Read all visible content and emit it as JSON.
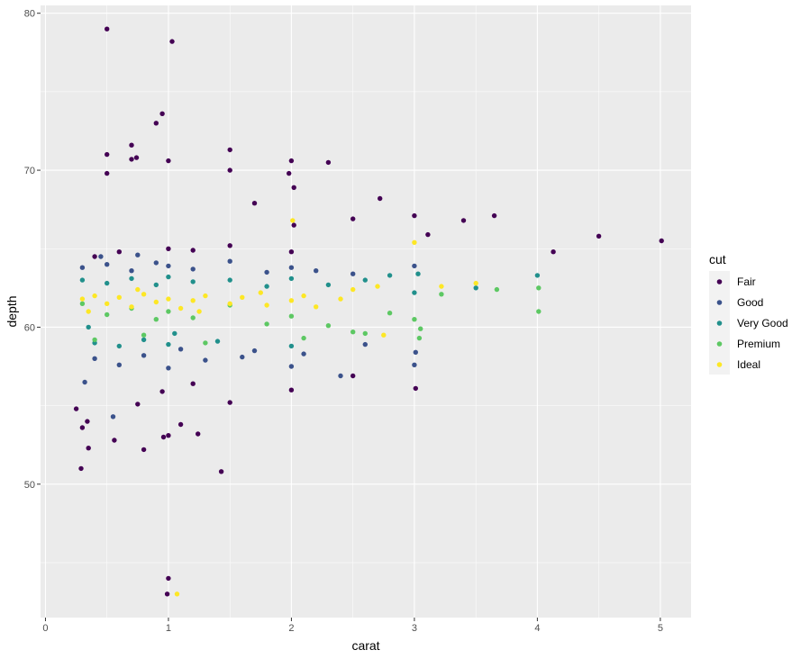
{
  "chart_data": {
    "type": "scatter",
    "title": "",
    "xlabel": "carat",
    "ylabel": "depth",
    "xlim": [
      -0.04,
      5.25
    ],
    "ylim": [
      41.5,
      80.5
    ],
    "x_ticks": [
      0,
      1,
      2,
      3,
      4,
      5
    ],
    "y_ticks": [
      50,
      60,
      70,
      80
    ],
    "grid": true,
    "background": "#ebebeb",
    "legend": {
      "title": "cut",
      "placement": "right",
      "entries": [
        {
          "label": "Fair",
          "color": "#440154"
        },
        {
          "label": "Good",
          "color": "#3b528b"
        },
        {
          "label": "Very Good",
          "color": "#21908c"
        },
        {
          "label": "Premium",
          "color": "#5dc863"
        },
        {
          "label": "Ideal",
          "color": "#fde725"
        }
      ]
    },
    "series": [
      {
        "name": "Fair",
        "color": "#440154",
        "points": [
          [
            0.5,
            79
          ],
          [
            1.03,
            78.2
          ],
          [
            0.29,
            51.0
          ],
          [
            0.35,
            52.3
          ],
          [
            1.43,
            50.8
          ],
          [
            1.0,
            44.0
          ],
          [
            0.99,
            43.0
          ],
          [
            0.95,
            73.6
          ],
          [
            0.9,
            73.0
          ],
          [
            0.5,
            71.0
          ],
          [
            0.7,
            71.6
          ],
          [
            1.5,
            71.3
          ],
          [
            1.0,
            70.6
          ],
          [
            2.0,
            70.6
          ],
          [
            2.3,
            70.5
          ],
          [
            0.7,
            70.7
          ],
          [
            0.74,
            70.8
          ],
          [
            1.5,
            70.0
          ],
          [
            0.5,
            69.8
          ],
          [
            1.98,
            69.8
          ],
          [
            2.02,
            68.9
          ],
          [
            3.0,
            67.1
          ],
          [
            3.4,
            66.8
          ],
          [
            3.65,
            67.1
          ],
          [
            4.5,
            65.8
          ],
          [
            5.01,
            65.5
          ],
          [
            4.13,
            64.8
          ],
          [
            3.11,
            65.9
          ],
          [
            2.02,
            66.5
          ],
          [
            2.5,
            66.9
          ],
          [
            2.72,
            68.2
          ],
          [
            1.7,
            67.9
          ],
          [
            1.24,
            53.2
          ],
          [
            0.3,
            53.6
          ],
          [
            0.8,
            52.2
          ],
          [
            1.0,
            53.1
          ],
          [
            0.96,
            53.0
          ],
          [
            1.1,
            53.8
          ],
          [
            0.34,
            54.0
          ],
          [
            0.56,
            52.8
          ],
          [
            0.25,
            54.8
          ],
          [
            0.75,
            55.1
          ],
          [
            0.95,
            55.9
          ],
          [
            1.5,
            55.2
          ],
          [
            2.0,
            56.0
          ],
          [
            3.01,
            56.1
          ],
          [
            2.5,
            56.9
          ],
          [
            1.2,
            56.4
          ],
          [
            0.4,
            64.5
          ],
          [
            0.6,
            64.8
          ],
          [
            1.0,
            65.0
          ],
          [
            1.2,
            64.9
          ],
          [
            1.5,
            65.2
          ],
          [
            2.0,
            64.8
          ]
        ]
      },
      {
        "name": "Good",
        "color": "#3b528b",
        "points": [
          [
            0.3,
            63.8
          ],
          [
            0.5,
            64.0
          ],
          [
            0.7,
            63.6
          ],
          [
            0.9,
            64.1
          ],
          [
            1.0,
            63.9
          ],
          [
            1.2,
            63.7
          ],
          [
            1.5,
            64.2
          ],
          [
            1.8,
            63.5
          ],
          [
            2.0,
            63.8
          ],
          [
            2.2,
            63.6
          ],
          [
            2.5,
            63.4
          ],
          [
            3.0,
            63.9
          ],
          [
            0.4,
            58.0
          ],
          [
            0.6,
            57.6
          ],
          [
            0.8,
            58.2
          ],
          [
            1.0,
            57.4
          ],
          [
            1.3,
            57.9
          ],
          [
            1.6,
            58.1
          ],
          [
            2.0,
            57.5
          ],
          [
            2.4,
            56.9
          ],
          [
            3.0,
            57.6
          ],
          [
            3.01,
            58.4
          ],
          [
            0.32,
            56.5
          ],
          [
            0.55,
            54.3
          ],
          [
            0.45,
            64.5
          ],
          [
            0.75,
            64.6
          ],
          [
            1.1,
            58.6
          ],
          [
            1.7,
            58.5
          ],
          [
            2.1,
            58.3
          ],
          [
            2.6,
            58.9
          ]
        ]
      },
      {
        "name": "Very Good",
        "color": "#21908c",
        "points": [
          [
            0.3,
            63.0
          ],
          [
            0.5,
            62.8
          ],
          [
            0.7,
            63.1
          ],
          [
            0.9,
            62.7
          ],
          [
            1.0,
            63.2
          ],
          [
            1.2,
            62.9
          ],
          [
            1.5,
            63.0
          ],
          [
            1.8,
            62.6
          ],
          [
            2.0,
            63.1
          ],
          [
            2.3,
            62.7
          ],
          [
            2.6,
            63.0
          ],
          [
            3.0,
            62.2
          ],
          [
            0.4,
            59.0
          ],
          [
            0.6,
            58.8
          ],
          [
            0.8,
            59.2
          ],
          [
            1.0,
            58.9
          ],
          [
            1.4,
            59.1
          ],
          [
            2.0,
            58.8
          ],
          [
            4.0,
            63.3
          ],
          [
            3.5,
            62.5
          ],
          [
            3.03,
            63.4
          ],
          [
            2.8,
            63.3
          ],
          [
            0.35,
            60.0
          ],
          [
            1.05,
            59.6
          ]
        ]
      },
      {
        "name": "Premium",
        "color": "#5dc863",
        "points": [
          [
            0.3,
            61.5
          ],
          [
            0.5,
            60.8
          ],
          [
            0.7,
            61.2
          ],
          [
            0.9,
            60.5
          ],
          [
            1.0,
            61.0
          ],
          [
            1.2,
            60.6
          ],
          [
            1.5,
            61.4
          ],
          [
            1.8,
            60.2
          ],
          [
            2.0,
            60.7
          ],
          [
            2.3,
            60.1
          ],
          [
            2.5,
            59.7
          ],
          [
            2.8,
            60.9
          ],
          [
            3.0,
            60.5
          ],
          [
            3.05,
            59.9
          ],
          [
            3.22,
            62.1
          ],
          [
            3.67,
            62.4
          ],
          [
            4.01,
            62.5
          ],
          [
            4.01,
            61.0
          ],
          [
            0.4,
            59.2
          ],
          [
            0.8,
            59.5
          ],
          [
            1.3,
            59.0
          ],
          [
            2.1,
            59.3
          ],
          [
            2.6,
            59.6
          ],
          [
            3.04,
            59.3
          ]
        ]
      },
      {
        "name": "Ideal",
        "color": "#fde725",
        "points": [
          [
            0.3,
            61.8
          ],
          [
            0.4,
            62.0
          ],
          [
            0.5,
            61.5
          ],
          [
            0.6,
            61.9
          ],
          [
            0.7,
            61.3
          ],
          [
            0.8,
            62.1
          ],
          [
            0.9,
            61.6
          ],
          [
            1.0,
            61.8
          ],
          [
            1.1,
            61.2
          ],
          [
            1.2,
            61.7
          ],
          [
            1.3,
            62.0
          ],
          [
            1.5,
            61.5
          ],
          [
            1.6,
            61.9
          ],
          [
            1.8,
            61.4
          ],
          [
            2.0,
            61.7
          ],
          [
            2.1,
            62.0
          ],
          [
            2.2,
            61.3
          ],
          [
            2.4,
            61.8
          ],
          [
            2.5,
            62.4
          ],
          [
            2.7,
            62.6
          ],
          [
            3.0,
            65.4
          ],
          [
            3.22,
            62.6
          ],
          [
            3.5,
            62.8
          ],
          [
            1.07,
            43.0
          ],
          [
            2.75,
            59.5
          ],
          [
            2.01,
            66.8
          ],
          [
            0.35,
            61.0
          ],
          [
            0.75,
            62.4
          ],
          [
            1.25,
            61.0
          ],
          [
            1.75,
            62.2
          ]
        ]
      }
    ]
  }
}
